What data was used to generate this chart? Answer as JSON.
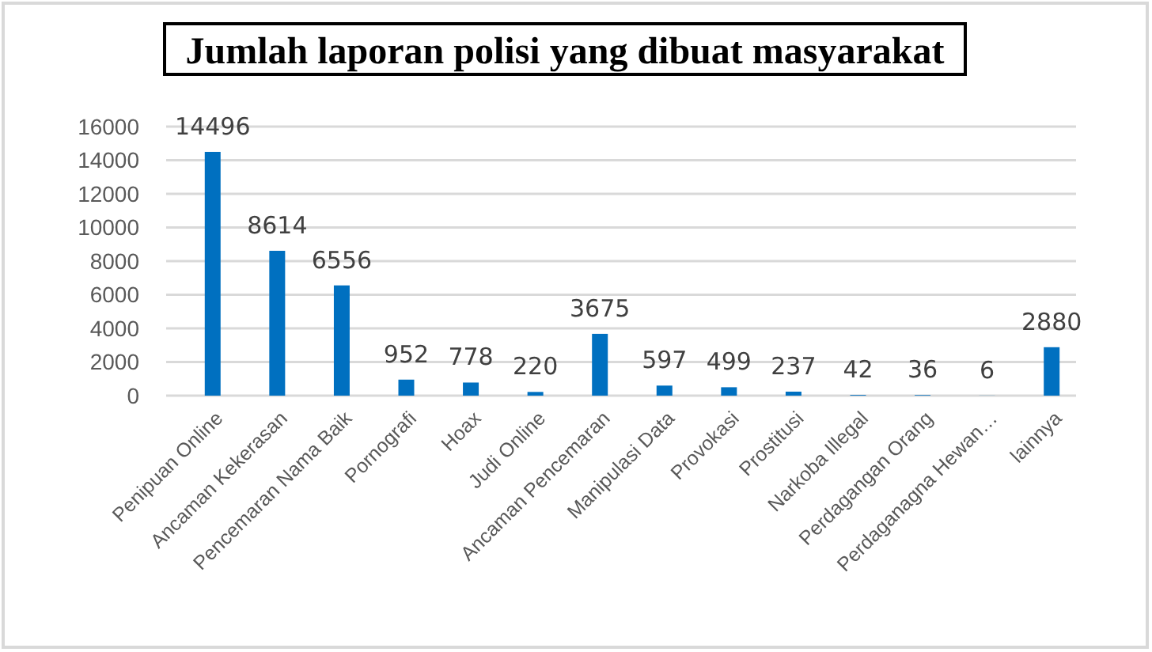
{
  "chart_data": {
    "type": "bar",
    "title": "Jumlah laporan polisi yang dibuat masyarakat",
    "categories": [
      "Penipuan Online",
      "Ancaman Kekerasan",
      "Pencemaran Nama Baik",
      "Pornografi",
      "Hoax",
      "Judi Online",
      "Ancaman Pencemaran",
      "Manipulasi Data",
      "Provokasi",
      "Prostitusi",
      "Narkoba Illegal",
      "Perdagangan Orang",
      "Perdaganagna Hewan…",
      "lainnya"
    ],
    "values": [
      14496,
      8614,
      6556,
      952,
      778,
      220,
      3675,
      597,
      499,
      237,
      42,
      36,
      6,
      2880
    ],
    "color": "#0070c0",
    "ylim": [
      0,
      16000
    ],
    "yticks": [
      0,
      2000,
      4000,
      6000,
      8000,
      10000,
      12000,
      14000,
      16000
    ],
    "grid": "y",
    "data_labels": true
  }
}
